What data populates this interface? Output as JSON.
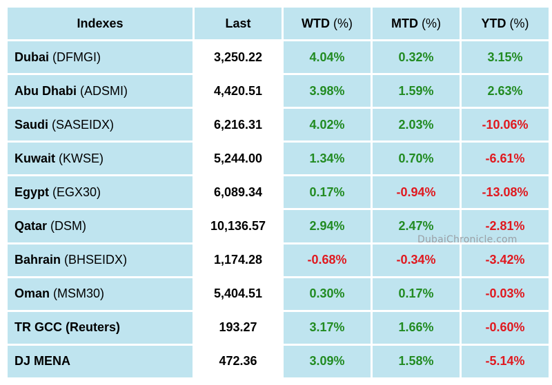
{
  "headers": {
    "index": "Indexes",
    "last": "Last",
    "wtd": "WTD",
    "mtd": "MTD",
    "ytd": "YTD",
    "unit": "(%)"
  },
  "rows": [
    {
      "name": "Dubai",
      "code": "(DFMGI)",
      "last": "3,250.22",
      "wtd": "4.04%",
      "mtd": "0.32%",
      "ytd": "3.15%",
      "wtd_dir": "pos",
      "mtd_dir": "pos",
      "ytd_dir": "pos"
    },
    {
      "name": "Abu Dhabi",
      "code": "(ADSMI)",
      "last": "4,420.51",
      "wtd": "3.98%",
      "mtd": "1.59%",
      "ytd": "2.63%",
      "wtd_dir": "pos",
      "mtd_dir": "pos",
      "ytd_dir": "pos"
    },
    {
      "name": "Saudi",
      "code": "(SASEIDX)",
      "last": "6,216.31",
      "wtd": "4.02%",
      "mtd": "2.03%",
      "ytd": "-10.06%",
      "wtd_dir": "pos",
      "mtd_dir": "pos",
      "ytd_dir": "neg"
    },
    {
      "name": "Kuwait",
      "code": "(KWSE)",
      "last": "5,244.00",
      "wtd": "1.34%",
      "mtd": "0.70%",
      "ytd": "-6.61%",
      "wtd_dir": "pos",
      "mtd_dir": "pos",
      "ytd_dir": "neg"
    },
    {
      "name": "Egypt",
      "code": "(EGX30)",
      "last": "6,089.34",
      "wtd": "0.17%",
      "mtd": "-0.94%",
      "ytd": "-13.08%",
      "wtd_dir": "pos",
      "mtd_dir": "neg",
      "ytd_dir": "neg"
    },
    {
      "name": "Qatar",
      "code": "(DSM)",
      "last": "10,136.57",
      "wtd": "2.94%",
      "mtd": "2.47%",
      "ytd": "-2.81%",
      "wtd_dir": "pos",
      "mtd_dir": "pos",
      "ytd_dir": "neg"
    },
    {
      "name": "Bahrain",
      "code": "(BHSEIDX)",
      "last": "1,174.28",
      "wtd": "-0.68%",
      "mtd": "-0.34%",
      "ytd": "-3.42%",
      "wtd_dir": "neg",
      "mtd_dir": "neg",
      "ytd_dir": "neg"
    },
    {
      "name": "Oman",
      "code": "(MSM30)",
      "last": "5,404.51",
      "wtd": "0.30%",
      "mtd": "0.17%",
      "ytd": "-0.03%",
      "wtd_dir": "pos",
      "mtd_dir": "pos",
      "ytd_dir": "neg"
    },
    {
      "name": "TR GCC (Reuters)",
      "code": "",
      "last": "193.27",
      "wtd": "3.17%",
      "mtd": "1.66%",
      "ytd": "-0.60%",
      "wtd_dir": "pos",
      "mtd_dir": "pos",
      "ytd_dir": "neg"
    },
    {
      "name": "DJ MENA",
      "code": "",
      "last": "472.36",
      "wtd": "3.09%",
      "mtd": "1.58%",
      "ytd": "-5.14%",
      "wtd_dir": "pos",
      "mtd_dir": "pos",
      "ytd_dir": "neg"
    }
  ],
  "colors": {
    "cell_bg": "#bfe4ef",
    "positive": "#228b22",
    "negative": "#e0191f"
  },
  "watermark": "DubaiChronicle.com"
}
